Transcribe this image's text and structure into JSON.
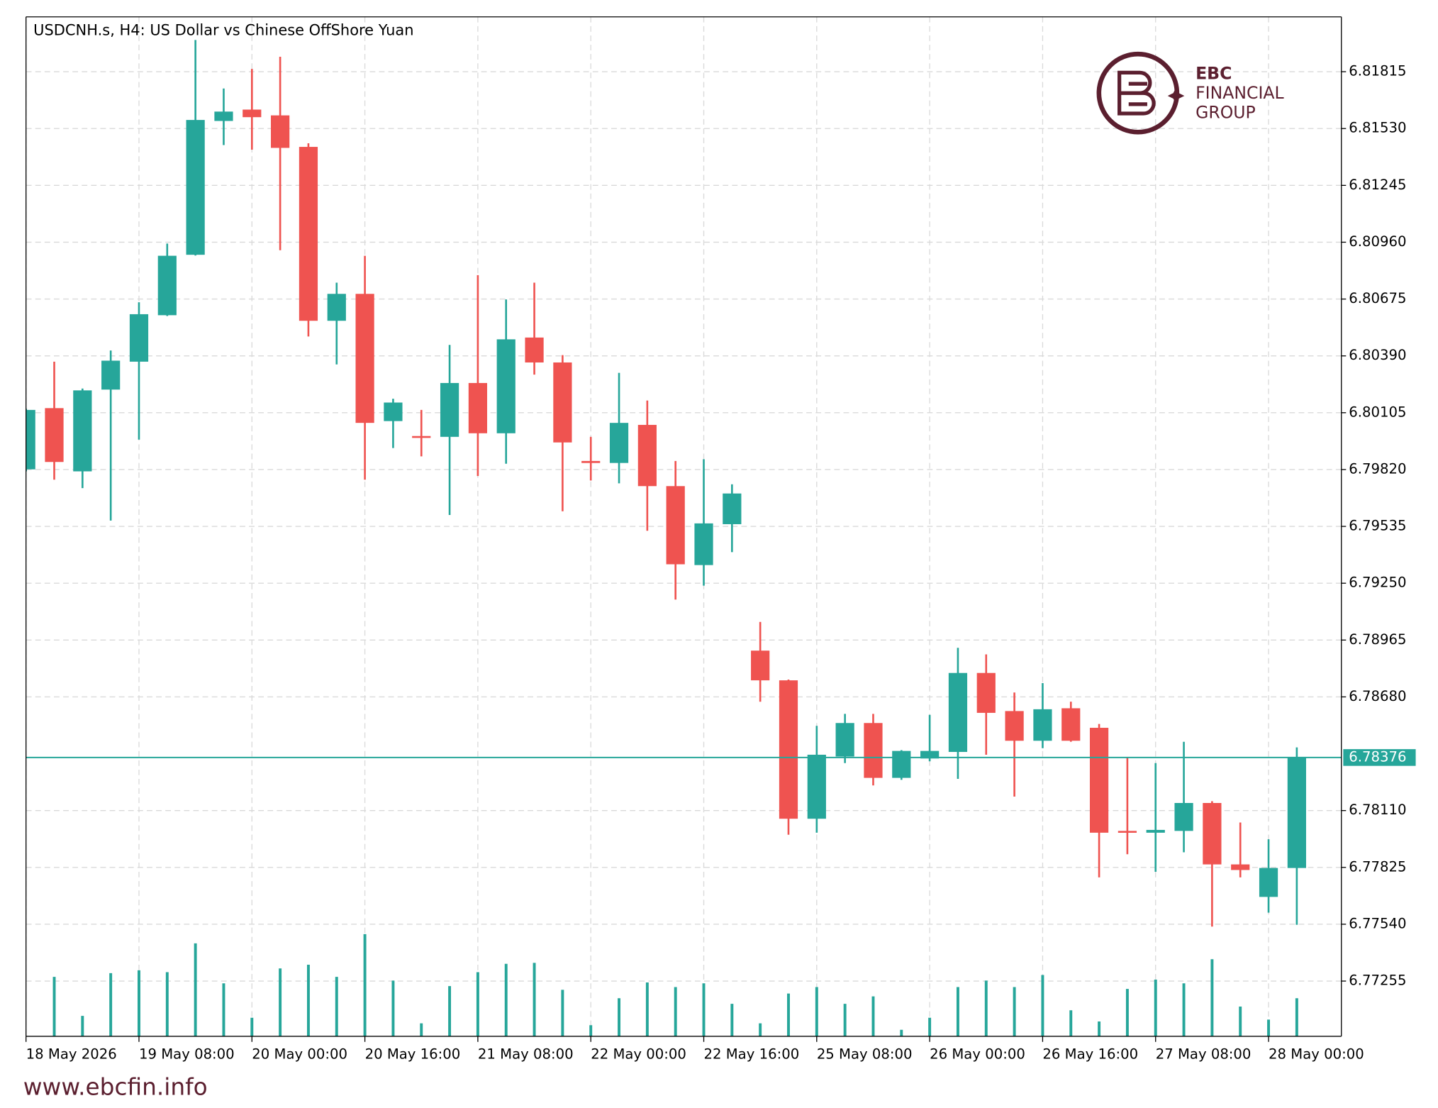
{
  "chart_data": {
    "type": "candlestick",
    "title": "USDCNH.s, H4:  US Dollar vs Chinese OffShore Yuan",
    "categories": [
      "18 May 2026",
      null,
      null,
      null,
      "19 May 08:00",
      null,
      null,
      null,
      "20 May 00:00",
      null,
      null,
      null,
      "20 May 16:00",
      null,
      null,
      null,
      "21 May 08:00",
      null,
      null,
      null,
      "22 May 00:00",
      null,
      null,
      null,
      "22 May 16:00",
      null,
      null,
      null,
      "25 May 08:00",
      null,
      null,
      null,
      "26 May 00:00",
      null,
      null,
      null,
      "26 May 16:00",
      null,
      null,
      null,
      "27 May 08:00",
      null,
      null,
      null,
      "28 May 00:00",
      null
    ],
    "open": [
      6.79821,
      6.80128,
      6.79811,
      6.80221,
      6.80361,
      6.80594,
      6.80897,
      6.81568,
      6.81625,
      6.81596,
      6.81438,
      6.80566,
      6.80701,
      6.80063,
      6.79988,
      6.79984,
      6.80254,
      6.80002,
      6.80482,
      6.80357,
      6.79863,
      6.79853,
      6.80044,
      6.79737,
      6.79341,
      6.79546,
      6.78912,
      6.78763,
      6.78069,
      6.78381,
      6.78549,
      6.78274,
      6.78371,
      6.78404,
      6.788,
      6.78609,
      6.7846,
      6.78623,
      6.78525,
      6.78008,
      6.77999,
      6.78008,
      6.78148,
      6.7784,
      6.77677,
      6.77822
    ],
    "high": [
      6.80125,
      6.80361,
      6.80226,
      6.80417,
      6.80659,
      6.80953,
      6.81974,
      6.81731,
      6.81829,
      6.8189,
      6.81456,
      6.80757,
      6.80892,
      6.80175,
      6.80119,
      6.80445,
      6.80795,
      6.80673,
      6.80757,
      6.80394,
      6.79984,
      6.80305,
      6.80166,
      6.79863,
      6.79872,
      6.79746,
      6.79056,
      6.78767,
      6.78535,
      6.78595,
      6.78595,
      6.78413,
      6.7859,
      6.78926,
      6.78893,
      6.78702,
      6.78749,
      6.78656,
      6.78544,
      6.78376,
      6.78348,
      6.78455,
      6.78157,
      6.7805,
      6.77966,
      6.78427
    ],
    "low": [
      6.79811,
      6.79769,
      6.79727,
      6.79564,
      6.7997,
      6.8059,
      6.80893,
      6.81447,
      6.81424,
      6.8092,
      6.80487,
      6.80347,
      6.79769,
      6.79928,
      6.79886,
      6.79592,
      6.79788,
      6.79849,
      6.80296,
      6.79611,
      6.79765,
      6.79751,
      6.79513,
      6.79168,
      6.79238,
      6.79406,
      6.78656,
      6.77989,
      6.77999,
      6.78348,
      6.78236,
      6.78264,
      6.78357,
      6.78269,
      6.7839,
      6.7818,
      6.78423,
      6.78455,
      6.77775,
      6.77891,
      6.77803,
      6.77901,
      6.77528,
      6.77775,
      6.77598,
      6.77537
    ],
    "close": [
      6.80119,
      6.79858,
      6.80217,
      6.80366,
      6.80599,
      6.80892,
      6.81573,
      6.81615,
      6.81587,
      6.81433,
      6.80566,
      6.80701,
      6.80054,
      6.80156,
      6.79984,
      6.80254,
      6.80002,
      6.80473,
      6.80357,
      6.79956,
      6.79853,
      6.80054,
      6.79737,
      6.79345,
      6.7955,
      6.797,
      6.78763,
      6.78069,
      6.7839,
      6.78549,
      6.78274,
      6.78409,
      6.78409,
      6.788,
      6.786,
      6.7846,
      6.78618,
      6.7846,
      6.77999,
      6.77999,
      6.78013,
      6.78148,
      6.7784,
      6.77812,
      6.77822,
      6.78376
    ],
    "volume": [
      null,
      64,
      22,
      68,
      71,
      69,
      100,
      57,
      20,
      73,
      77,
      64,
      110,
      60,
      14,
      54,
      69,
      78,
      79,
      50,
      12,
      41,
      58,
      53,
      57,
      35,
      14,
      46,
      53,
      35,
      43,
      7,
      20,
      53,
      60,
      53,
      66,
      28,
      16,
      51,
      61,
      57,
      83,
      32,
      18,
      41
    ],
    "up_color": "#26a69a",
    "down_color": "#ef5350",
    "current_price": 6.78376,
    "ylim": [
      6.76978,
      6.8209
    ],
    "yticks": [
      6.81815,
      {
        "value": 6.8153,
        "label": "6.81530"
      },
      6.81245,
      {
        "value": 6.8096,
        "label": "6.80960"
      },
      6.80675,
      {
        "value": 6.8039,
        "label": "6.80390"
      },
      6.80105,
      {
        "value": 6.7982,
        "label": "6.79820"
      },
      6.79535,
      {
        "value": 6.7925,
        "label": "6.79250"
      },
      6.78965,
      {
        "value": 6.7868,
        "label": "6.78680"
      },
      {
        "value": 6.7811,
        "label": "6.78110"
      },
      6.77825,
      {
        "value": 6.7754,
        "label": "6.77540"
      },
      6.77255
    ],
    "grid": true
  },
  "logo": {
    "line1": "EBC",
    "line2": "FINANCIAL",
    "line3": "GROUP"
  },
  "footer": "www.ebcfin.info"
}
